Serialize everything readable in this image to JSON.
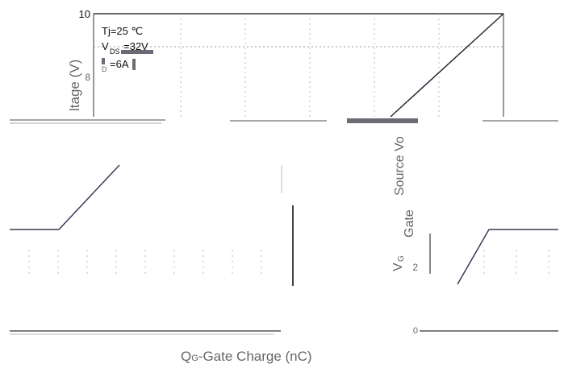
{
  "chart_data": {
    "type": "line",
    "title": "",
    "xlabel_main": "Q",
    "xlabel_sub": "G",
    "xlabel_rest": "-Gate Charge (nC)",
    "ylabel_visible": [
      "ltage (V)",
      "Source Vo",
      "Gate",
      "V",
      "G"
    ],
    "y_ticks_visible": [
      "10",
      "8",
      "2",
      "0"
    ],
    "ylim": [
      0,
      10
    ],
    "annotations": [
      "Tj=25 ℃",
      "V",
      "DS",
      "=32V",
      "D",
      "=6A"
    ],
    "series": [
      {
        "values": [
          {
            "x": 0,
            "y": 0
          },
          {
            "x": 1,
            "y": 2.6
          },
          {
            "x": 2.2,
            "y": 2.6
          },
          {
            "x": 3,
            "y": 4.2
          },
          {
            "x": 8,
            "y": 10
          }
        ]
      }
    ]
  }
}
